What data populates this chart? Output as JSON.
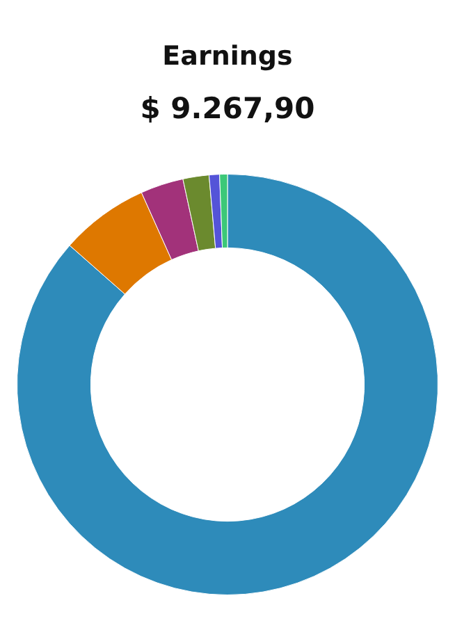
{
  "chart_data": {
    "type": "donut",
    "title": "Earnings",
    "subtitle": "$ 9.267,90",
    "categories": [
      null,
      null,
      null,
      null,
      null,
      null
    ],
    "values": [
      86.5,
      6.8,
      3.3,
      2.0,
      0.8,
      0.6
    ],
    "colors": [
      "#2e8bba",
      "#de7800",
      "#a2327a",
      "#6b8a2e",
      "#5454d8",
      "#3cc878"
    ],
    "legend": false
  }
}
